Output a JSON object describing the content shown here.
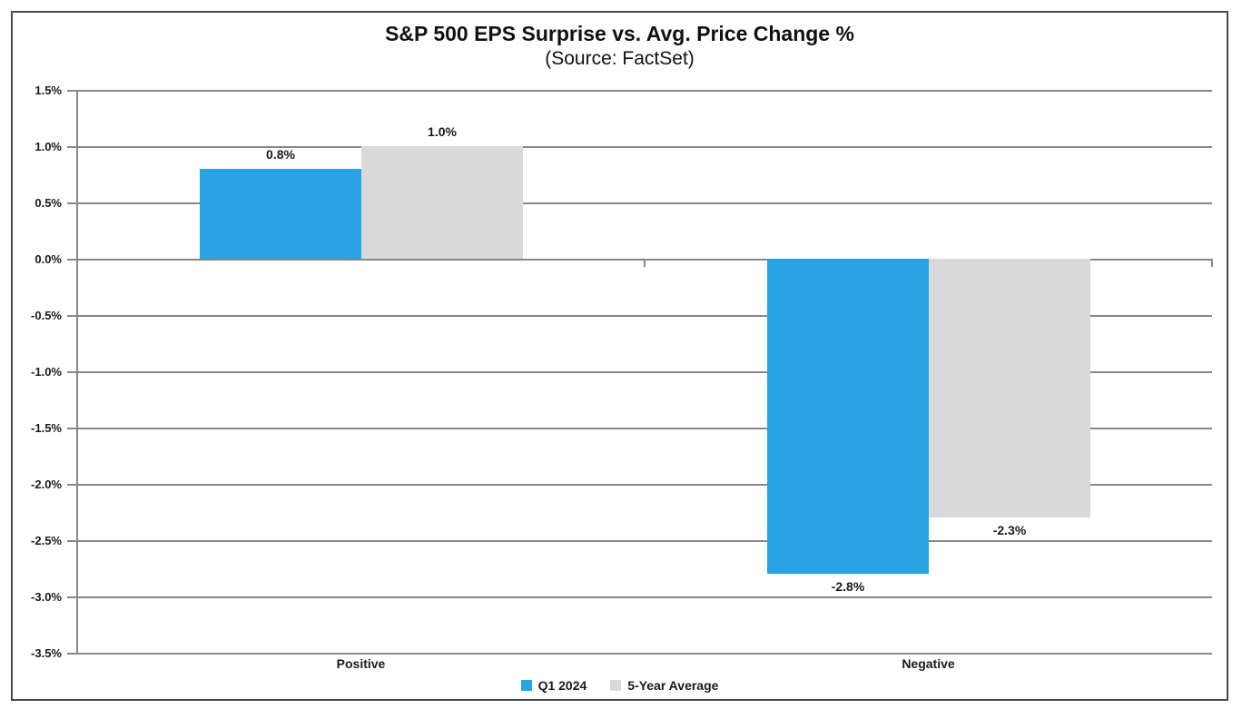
{
  "chart_data": {
    "type": "bar",
    "title": "S&P 500 EPS Surprise vs. Avg. Price Change %",
    "subtitle": "(Source: FactSet)",
    "categories": [
      "Positive",
      "Negative"
    ],
    "series": [
      {
        "name": "Q1 2024",
        "color": "#28A3E4",
        "values": [
          0.8,
          -2.8
        ],
        "labels": [
          "0.8%",
          "-2.8%"
        ]
      },
      {
        "name": "5-Year Average",
        "color": "#D9D9D9",
        "values": [
          1.0,
          -2.3
        ],
        "labels": [
          "1.0%",
          "-2.3%"
        ]
      }
    ],
    "ylim": [
      -3.5,
      1.5
    ],
    "ytick_step": 0.5,
    "ytick_labels": [
      "1.5%",
      "1.0%",
      "0.5%",
      "0.0%",
      "-0.5%",
      "-1.0%",
      "-1.5%",
      "-2.0%",
      "-2.5%",
      "-3.0%",
      "-3.5%"
    ],
    "grid": true,
    "legend_position": "bottom"
  },
  "colors": {
    "background": "#FFFFFF",
    "grid": "#878787",
    "axis": "#878787",
    "frame_border": "#4A4A4A",
    "text": "#1A1A1A"
  }
}
